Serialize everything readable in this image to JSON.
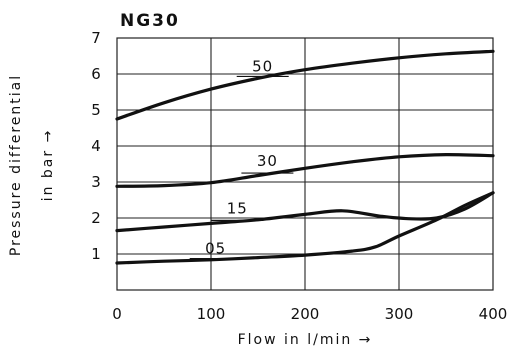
{
  "chart_data": {
    "type": "line",
    "title": "NG30",
    "xlabel": "Flow in l/min →",
    "ylabel_line1": "Pressure differential",
    "ylabel_line2": "in bar →",
    "xlim": [
      0,
      400
    ],
    "ylim": [
      0,
      7
    ],
    "x_ticks": [
      0,
      100,
      200,
      300,
      400
    ],
    "x_tick_labels": [
      "0",
      "100",
      "200",
      "300",
      "400"
    ],
    "y_ticks": [
      1,
      2,
      3,
      4,
      5,
      6,
      7
    ],
    "y_tick_labels": [
      "1",
      "2",
      "3",
      "4",
      "5",
      "6",
      "7"
    ],
    "grid": true,
    "series": [
      {
        "name": "50",
        "x": [
          0,
          50,
          100,
          150,
          200,
          250,
          300,
          350,
          400
        ],
        "y": [
          4.75,
          5.2,
          5.58,
          5.88,
          6.12,
          6.3,
          6.45,
          6.56,
          6.63
        ]
      },
      {
        "name": "30",
        "x": [
          0,
          50,
          100,
          150,
          200,
          250,
          300,
          350,
          400
        ],
        "y": [
          2.88,
          2.9,
          2.98,
          3.18,
          3.38,
          3.56,
          3.7,
          3.76,
          3.73
        ]
      },
      {
        "name": "15",
        "x": [
          0,
          50,
          100,
          150,
          200,
          240,
          280,
          310,
          340,
          370,
          400
        ],
        "y": [
          1.65,
          1.75,
          1.85,
          1.95,
          2.1,
          2.2,
          2.05,
          1.98,
          2.0,
          2.25,
          2.7
        ]
      },
      {
        "name": "05",
        "x": [
          0,
          50,
          100,
          150,
          200,
          250,
          275,
          300,
          340,
          370,
          400
        ],
        "y": [
          0.75,
          0.8,
          0.84,
          0.9,
          0.97,
          1.08,
          1.2,
          1.5,
          1.95,
          2.35,
          2.7
        ]
      }
    ]
  }
}
